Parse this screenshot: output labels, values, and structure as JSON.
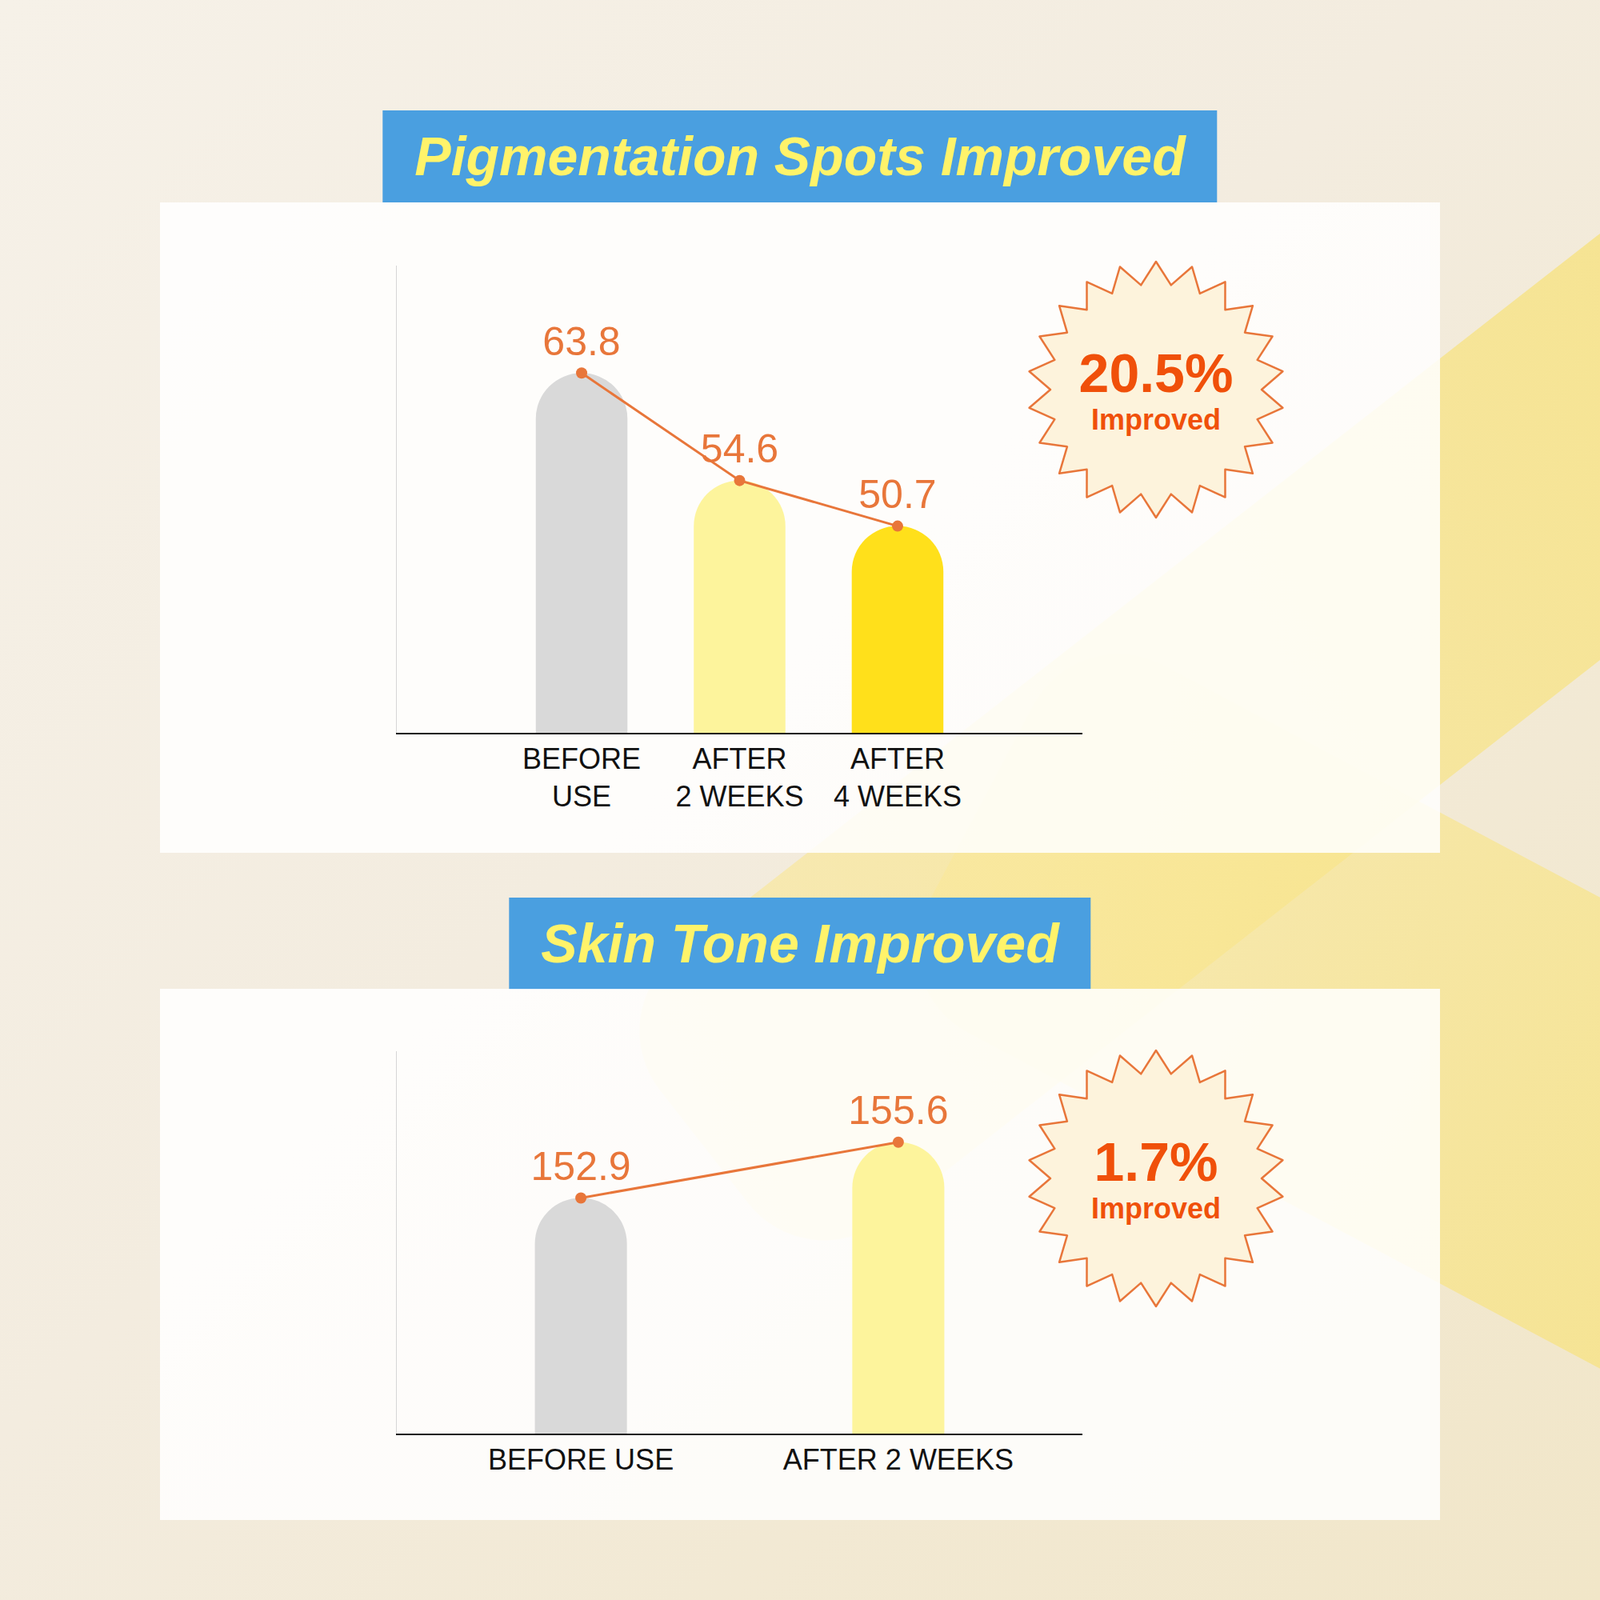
{
  "chart_data": [
    {
      "type": "bar",
      "title": "Pigmentation Spots Improved",
      "categories": [
        "BEFORE USE",
        "AFTER 2 WEEKS",
        "AFTER 4 WEEKS"
      ],
      "series": [
        {
          "type": "bar",
          "colors": [
            "#d9d9d9",
            "#fdf49c",
            "#ffe01b"
          ],
          "values": [
            63.8,
            54.6,
            50.7
          ]
        },
        {
          "type": "line",
          "color": "#e8763a",
          "marker": "circle",
          "line_style": "solid",
          "values": [
            63.8,
            54.6,
            50.7
          ]
        }
      ],
      "ylim": [
        33,
        73
      ],
      "grid": false,
      "tick_labels": "x",
      "data_labels": true,
      "badge": {
        "label": "20.5%",
        "text": "Improved"
      }
    },
    {
      "type": "bar",
      "title": "Skin Tone Improved",
      "categories": [
        "BEFORE USE",
        "AFTER 2 WEEKS"
      ],
      "series": [
        {
          "type": "bar",
          "colors": [
            "#d9d9d9",
            "#fdf49c"
          ],
          "values": [
            152.9,
            155.6
          ]
        },
        {
          "type": "line",
          "color": "#e8763a",
          "marker": "circle",
          "line_style": "solid",
          "values": [
            152.9,
            155.6
          ]
        }
      ],
      "ylim": [
        141.5,
        160
      ],
      "grid": false,
      "tick_labels": "x",
      "data_labels": true,
      "badge": {
        "label": "1.7%",
        "text": "Improved"
      }
    }
  ]
}
